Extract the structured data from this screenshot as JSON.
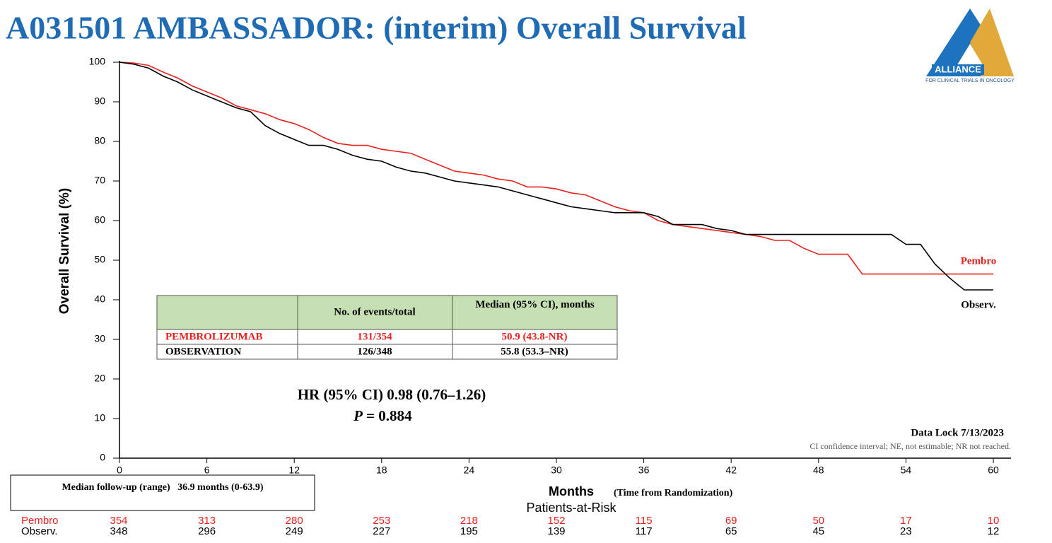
{
  "chart_data": {
    "type": "line",
    "title": "A031501 AMBASSADOR: (interim) Overall Survival",
    "logo": {
      "name": "ALLIANCE",
      "subtitle": "FOR CLINICAL TRIALS IN ONCOLOGY"
    },
    "y_label": "Overall Survival  (%)",
    "x_label": "Months",
    "x_label_note": "(Time from Randomization)",
    "xlim": [
      0,
      60
    ],
    "xticks": [
      0,
      6,
      12,
      18,
      24,
      30,
      36,
      42,
      48,
      54,
      60
    ],
    "ylim": [
      0,
      100
    ],
    "yticks": [
      0,
      10,
      20,
      30,
      40,
      50,
      60,
      70,
      80,
      90,
      100
    ],
    "series": [
      {
        "name": "Pembro",
        "color": "#e8231f",
        "x": [
          0,
          1,
          2,
          3,
          4,
          5,
          6,
          7,
          8,
          9,
          10,
          11,
          12,
          13,
          14,
          15,
          16,
          17,
          18,
          19,
          20,
          21,
          22,
          23,
          24,
          25,
          26,
          27,
          28,
          29,
          30,
          31,
          32,
          33,
          34,
          35,
          36,
          37,
          38,
          39,
          40,
          41,
          42,
          43,
          44,
          45,
          46,
          47,
          48,
          49,
          50,
          51,
          52,
          53,
          54,
          55,
          56,
          57,
          58,
          59,
          60
        ],
        "values": [
          100,
          99.8,
          99.2,
          97.5,
          96,
          94,
          92.5,
          91,
          89,
          88,
          87,
          85.5,
          84.5,
          83,
          81,
          79.5,
          79,
          79,
          78,
          77.5,
          77,
          75.5,
          74,
          72.5,
          72,
          71.5,
          70.5,
          70,
          68.5,
          68.5,
          68,
          67,
          66.5,
          65,
          63.5,
          62.5,
          62,
          60,
          59,
          58.5,
          58,
          57.5,
          57,
          56.5,
          56,
          55,
          55,
          53,
          51.5,
          51.5,
          51.5,
          46.5,
          46.5,
          46.5,
          46.5,
          46.5,
          46.5,
          46.5,
          46.5,
          46.5,
          46.5
        ]
      },
      {
        "name": "Observ.",
        "color": "#000000",
        "x": [
          0,
          1,
          2,
          3,
          4,
          5,
          6,
          7,
          8,
          9,
          10,
          11,
          12,
          13,
          14,
          15,
          16,
          17,
          18,
          19,
          20,
          21,
          22,
          23,
          24,
          25,
          26,
          27,
          28,
          29,
          30,
          31,
          32,
          33,
          34,
          35,
          36,
          37,
          38,
          39,
          40,
          41,
          42,
          43,
          44,
          45,
          46,
          47,
          48,
          49,
          50,
          51,
          52,
          53,
          54,
          55,
          56,
          57,
          58,
          59,
          60
        ],
        "values": [
          100,
          99.5,
          98.5,
          96.5,
          95,
          93,
          91.5,
          90,
          88.5,
          87.5,
          84,
          82,
          80.5,
          79,
          79,
          78,
          76.5,
          75.5,
          75,
          73.5,
          72.5,
          72,
          71,
          70,
          69.5,
          69,
          68.5,
          67.5,
          66.5,
          65.5,
          64.5,
          63.5,
          63,
          62.5,
          62,
          62,
          62,
          61,
          59,
          59,
          59,
          58,
          57.5,
          56.5,
          56.5,
          56.5,
          56.5,
          56.5,
          56.5,
          56.5,
          56.5,
          56.5,
          56.5,
          56.5,
          54,
          54,
          49,
          45.5,
          42.5,
          42.5,
          42.5
        ]
      }
    ],
    "table": {
      "header": [
        "No. of events/total",
        "Median (95% CI), months"
      ],
      "rows": [
        [
          "PEMBROLIZUMAB",
          "131/354",
          "50.9 (43.8-NR)"
        ],
        [
          "OBSERVATION",
          "126/348",
          "55.8 (53.3–NR)"
        ]
      ]
    },
    "hr_text": "HR (95% CI) 0.98 (0.76–1.26)",
    "p_symbol": "P",
    "p_text": "= 0.884",
    "data_lock": "Data Lock 7/13/2023",
    "footnote": "CI confidence interval; NE, not estimable; NR not reached.",
    "median_follow_up": "Median follow-up (range)   36.9 months (0-63.9)",
    "risk_table": {
      "title": "Patients-at-Risk",
      "rows": [
        {
          "label": "Pembro",
          "values": [
            354,
            313,
            280,
            253,
            218,
            152,
            115,
            69,
            50,
            17,
            10
          ]
        },
        {
          "label": "Observ.",
          "values": [
            348,
            296,
            249,
            227,
            195,
            139,
            117,
            65,
            45,
            23,
            12
          ]
        }
      ]
    }
  }
}
